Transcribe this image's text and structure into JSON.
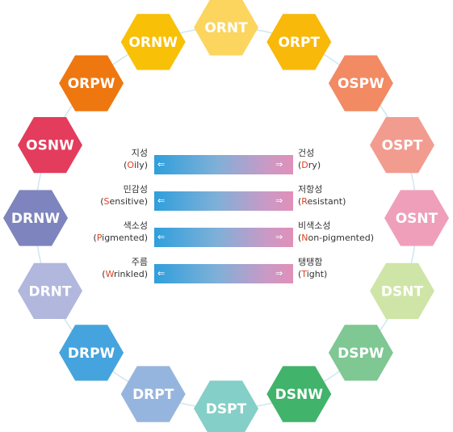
{
  "hexagons": [
    {
      "code": "ORNT",
      "color": "#fcd55f"
    },
    {
      "code": "ORPT",
      "color": "#f9b90b"
    },
    {
      "code": "OSPW",
      "color": "#f28a64"
    },
    {
      "code": "OSPT",
      "color": "#f29c8f"
    },
    {
      "code": "OSNT",
      "color": "#ef9fba"
    },
    {
      "code": "DSNT",
      "color": "#cfe5a7"
    },
    {
      "code": "DSPW",
      "color": "#7fc793"
    },
    {
      "code": "DSNW",
      "color": "#41b36b"
    },
    {
      "code": "DSPT",
      "color": "#84cfc8"
    },
    {
      "code": "DRPT",
      "color": "#96b5de"
    },
    {
      "code": "DRPW",
      "color": "#45a4dd"
    },
    {
      "code": "DRNT",
      "color": "#b1b7dd"
    },
    {
      "code": "DRNW",
      "color": "#7e84bd"
    },
    {
      "code": "OSNW",
      "color": "#e33c5c"
    },
    {
      "code": "ORPW",
      "color": "#ef7710"
    },
    {
      "code": "ORNW",
      "color": "#f8c006"
    }
  ],
  "axes": [
    {
      "left_ko": "지성",
      "left_first": "O",
      "left_rest": "ily",
      "right_ko": "건성",
      "right_first": "D",
      "right_rest": "ry"
    },
    {
      "left_ko": "민감성",
      "left_first": "S",
      "left_rest": "ensitive",
      "right_ko": "저항성",
      "right_first": "R",
      "right_rest": "esistant"
    },
    {
      "left_ko": "색소성",
      "left_first": "P",
      "left_rest": "igmented",
      "right_ko": "비색소성",
      "right_first": "N",
      "right_rest": "on-pigmented"
    },
    {
      "left_ko": "주름",
      "left_first": "W",
      "left_rest": "rinkled",
      "right_ko": "탱탱함",
      "right_first": "T",
      "right_rest": "ight"
    }
  ],
  "glyphs": {
    "arrow_left": "⇐",
    "arrow_right": "⇒",
    "paren_open": "(",
    "paren_close": ")"
  }
}
